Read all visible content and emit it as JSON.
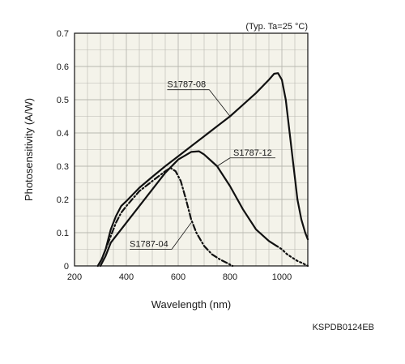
{
  "chart_data": {
    "type": "line",
    "title": "",
    "note": "(Typ. Ta=25 °C)",
    "xlabel": "Wavelength (nm)",
    "ylabel": "Photosensitivity (A/W)",
    "code": "KSPDB0124EB",
    "xlim": [
      200,
      1100
    ],
    "ylim": [
      0,
      0.7
    ],
    "x_ticks": [
      200,
      400,
      600,
      800,
      1000
    ],
    "x_tick_labels": [
      "200",
      "400",
      "600",
      "800",
      "1000"
    ],
    "y_ticks": [
      0,
      0.1,
      0.2,
      0.3,
      0.4,
      0.5,
      0.6,
      0.7
    ],
    "y_tick_labels": [
      "0",
      "0.1",
      "0.2",
      "0.3",
      "0.4",
      "0.5",
      "0.6",
      "0.7"
    ],
    "grid": true,
    "colors": {
      "plot_bg": "#f4f3ea",
      "line": "#111111",
      "grid": "#b8b8b0"
    },
    "series": [
      {
        "name": "S1787-08",
        "style": "solid",
        "points": [
          [
            290,
            0
          ],
          [
            305,
            0.02
          ],
          [
            320,
            0.05
          ],
          [
            340,
            0.11
          ],
          [
            360,
            0.15
          ],
          [
            380,
            0.18
          ],
          [
            400,
            0.195
          ],
          [
            450,
            0.235
          ],
          [
            500,
            0.268
          ],
          [
            550,
            0.3
          ],
          [
            600,
            0.33
          ],
          [
            650,
            0.36
          ],
          [
            700,
            0.39
          ],
          [
            750,
            0.42
          ],
          [
            800,
            0.45
          ],
          [
            850,
            0.485
          ],
          [
            900,
            0.52
          ],
          [
            950,
            0.56
          ],
          [
            970,
            0.578
          ],
          [
            985,
            0.58
          ],
          [
            1000,
            0.56
          ],
          [
            1015,
            0.5
          ],
          [
            1030,
            0.4
          ],
          [
            1045,
            0.3
          ],
          [
            1060,
            0.2
          ],
          [
            1075,
            0.14
          ],
          [
            1090,
            0.1
          ],
          [
            1100,
            0.08
          ]
        ]
      },
      {
        "name": "S1787-12",
        "style": "solid-then-dotted",
        "points": [
          [
            300,
            0
          ],
          [
            320,
            0.03
          ],
          [
            340,
            0.07
          ],
          [
            360,
            0.09
          ],
          [
            380,
            0.11
          ],
          [
            400,
            0.13
          ],
          [
            450,
            0.18
          ],
          [
            500,
            0.23
          ],
          [
            550,
            0.28
          ],
          [
            600,
            0.32
          ],
          [
            650,
            0.343
          ],
          [
            680,
            0.345
          ],
          [
            700,
            0.335
          ],
          [
            750,
            0.3
          ],
          [
            800,
            0.24
          ],
          [
            850,
            0.17
          ],
          [
            900,
            0.11
          ],
          [
            950,
            0.075
          ],
          [
            980,
            0.06
          ]
        ],
        "dotted_points": [
          [
            980,
            0.06
          ],
          [
            1000,
            0.05
          ],
          [
            1020,
            0.035
          ],
          [
            1040,
            0.025
          ],
          [
            1060,
            0.015
          ],
          [
            1080,
            0.008
          ],
          [
            1100,
            0
          ]
        ]
      },
      {
        "name": "S1787-04",
        "style": "dash-dot",
        "points": [
          [
            290,
            0
          ],
          [
            305,
            0.02
          ],
          [
            320,
            0.05
          ],
          [
            340,
            0.09
          ],
          [
            360,
            0.13
          ],
          [
            380,
            0.16
          ],
          [
            400,
            0.18
          ],
          [
            450,
            0.225
          ],
          [
            500,
            0.255
          ],
          [
            550,
            0.285
          ],
          [
            570,
            0.295
          ],
          [
            590,
            0.285
          ],
          [
            610,
            0.255
          ],
          [
            630,
            0.2
          ],
          [
            650,
            0.14
          ],
          [
            670,
            0.1
          ],
          [
            700,
            0.06
          ],
          [
            730,
            0.035
          ],
          [
            760,
            0.02
          ],
          [
            790,
            0.008
          ],
          [
            810,
            0
          ]
        ]
      }
    ],
    "labels": [
      {
        "series": "S1787-08",
        "text": "S1787-08",
        "at": [
          720,
          0.53
        ],
        "point": [
          800,
          0.45
        ],
        "align": "right"
      },
      {
        "series": "S1787-12",
        "text": "S1787-12",
        "at": [
          800,
          0.325
        ],
        "point": [
          750,
          0.3
        ],
        "align": "left"
      },
      {
        "series": "S1787-04",
        "text": "S1787-04",
        "at": [
          575,
          0.05
        ],
        "point": [
          650,
          0.13
        ],
        "align": "right"
      }
    ]
  }
}
